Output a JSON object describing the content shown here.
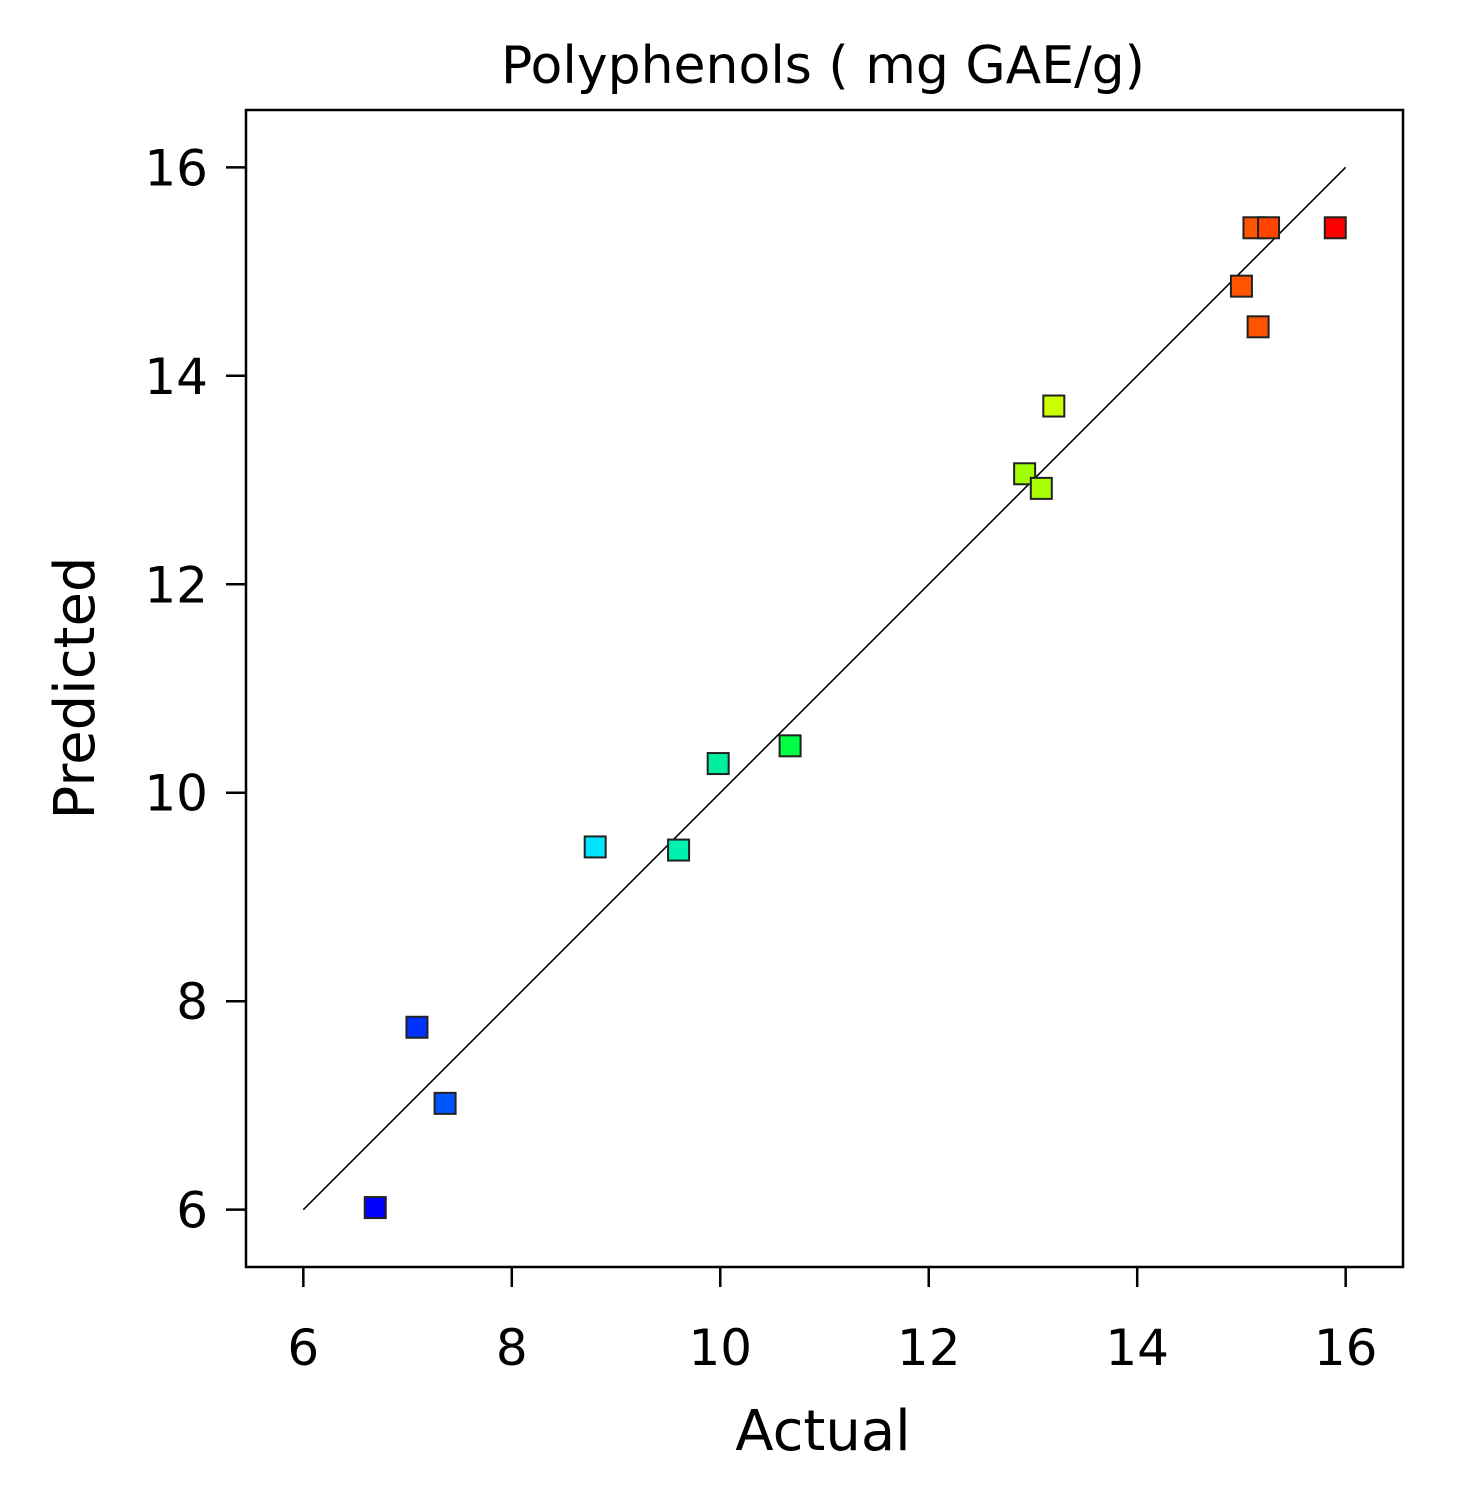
{
  "chart_data": {
    "type": "scatter",
    "title": "Polyphenols ( mg GAE/g)",
    "xlabel": "Actual",
    "ylabel": "Predicted",
    "xlim": [
      5.45,
      16.55
    ],
    "ylim": [
      5.45,
      16.55
    ],
    "xticks": [
      "6",
      "8",
      "10",
      "12",
      "14",
      "16"
    ],
    "yticks": [
      "6",
      "8",
      "10",
      "12",
      "14",
      "16"
    ],
    "xtick_values": [
      6,
      8,
      10,
      12,
      14,
      16
    ],
    "ytick_values": [
      6,
      8,
      10,
      12,
      14,
      16
    ],
    "reference_line": {
      "from": [
        6,
        6
      ],
      "to": [
        16,
        16
      ]
    },
    "grid": false,
    "points": [
      {
        "x": 6.69,
        "y": 6.02,
        "color": "#0000ff"
      },
      {
        "x": 7.09,
        "y": 7.75,
        "color": "#0033ff"
      },
      {
        "x": 7.36,
        "y": 7.02,
        "color": "#0055ff"
      },
      {
        "x": 8.8,
        "y": 9.48,
        "color": "#00e6ff"
      },
      {
        "x": 9.6,
        "y": 9.45,
        "color": "#00f0b0"
      },
      {
        "x": 9.98,
        "y": 10.28,
        "color": "#00f0a0"
      },
      {
        "x": 10.67,
        "y": 10.45,
        "color": "#00ff44"
      },
      {
        "x": 12.92,
        "y": 13.06,
        "color": "#a0ff00"
      },
      {
        "x": 13.08,
        "y": 12.92,
        "color": "#aaff00"
      },
      {
        "x": 13.2,
        "y": 13.71,
        "color": "#ccff00"
      },
      {
        "x": 15.0,
        "y": 14.86,
        "color": "#ff5500"
      },
      {
        "x": 15.16,
        "y": 14.47,
        "color": "#ff5500"
      },
      {
        "x": 15.12,
        "y": 15.42,
        "color": "#ff5500"
      },
      {
        "x": 15.26,
        "y": 15.42,
        "color": "#ff4400"
      },
      {
        "x": 15.9,
        "y": 15.42,
        "color": "#ff0000"
      }
    ]
  }
}
